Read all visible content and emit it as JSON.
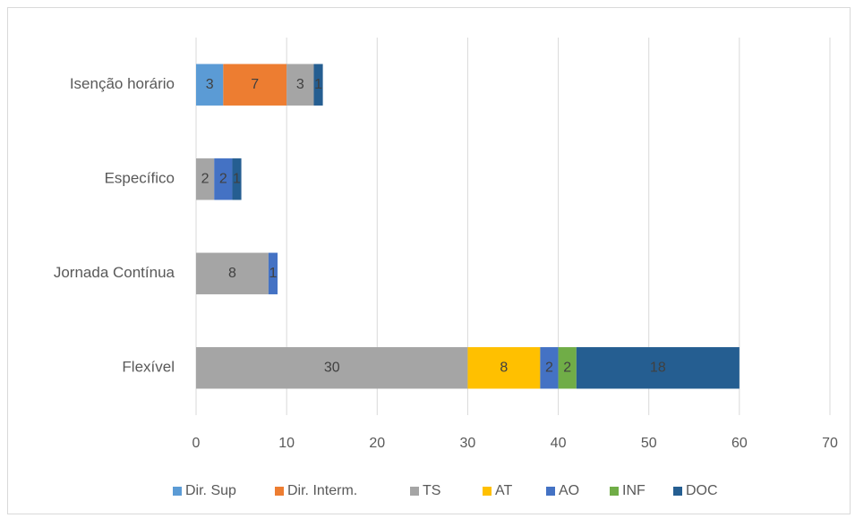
{
  "chart_data": {
    "type": "stacked_bar_horizontal",
    "categories": [
      "Flexível",
      "Jornada Contínua",
      "Específico",
      "Isenção horário"
    ],
    "series": [
      {
        "name": "Dir. Sup",
        "color": "#5b9bd5",
        "values": [
          null,
          null,
          null,
          3
        ]
      },
      {
        "name": "Dir. Interm.",
        "color": "#ed7d31",
        "values": [
          null,
          null,
          null,
          7
        ]
      },
      {
        "name": "TS",
        "color": "#a5a5a5",
        "values": [
          30,
          8,
          2,
          3
        ]
      },
      {
        "name": "AT",
        "color": "#ffc000",
        "values": [
          8,
          null,
          null,
          null
        ]
      },
      {
        "name": "AO",
        "color": "#4472c4",
        "values": [
          2,
          1,
          2,
          null
        ]
      },
      {
        "name": "INF",
        "color": "#70ad47",
        "values": [
          2,
          null,
          null,
          null
        ]
      },
      {
        "name": "DOC",
        "color": "#255e91",
        "values": [
          18,
          null,
          1,
          1
        ]
      }
    ],
    "xlim": [
      0,
      70
    ],
    "xticks": [
      0,
      10,
      20,
      30,
      40,
      50,
      60,
      70
    ],
    "grid": true,
    "legend": "bottom"
  }
}
